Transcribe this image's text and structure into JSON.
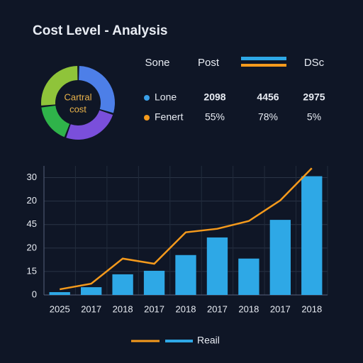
{
  "header": {
    "title": "Cost Level - Analysis"
  },
  "table": {
    "headers": [
      "Sone",
      "Post",
      "DSc"
    ],
    "rows": [
      {
        "label": "Lone",
        "color": "#3aa0e8",
        "cells": [
          "2098",
          "4456",
          "2975"
        ]
      },
      {
        "label": "Fenert",
        "color": "#f59a1c",
        "cells": [
          "55%",
          "78%",
          "5%"
        ]
      }
    ]
  },
  "chart_data": [
    {
      "type": "donut",
      "title": "Cartral",
      "subtitle": "cost",
      "values": [
        29,
        25,
        17,
        26
      ],
      "colors": [
        "#4d7fe8",
        "#7a4fdb",
        "#2fb34a",
        "#8fc43a"
      ]
    },
    {
      "type": "bar-line",
      "categories": [
        "2025",
        "2017",
        "2018",
        "2017",
        "2018",
        "2017",
        "2018",
        "2017",
        "2018"
      ],
      "series": [
        {
          "name": "Reail",
          "color": "#2ea8e6",
          "type": "bar",
          "values": [
            0.12,
            0.33,
            0.88,
            1.03,
            1.7,
            2.45,
            1.55,
            3.2,
            5.06
          ]
        },
        {
          "color": "#f59a1c",
          "type": "line",
          "values": [
            0.24,
            0.48,
            1.55,
            1.33,
            2.67,
            2.82,
            3.15,
            4.03,
            5.4
          ]
        }
      ],
      "ylim": [
        0,
        5.5
      ],
      "yticks": [
        {
          "value": 0,
          "label": "0"
        },
        {
          "value": 1,
          "label": "15"
        },
        {
          "value": 2,
          "label": "20"
        },
        {
          "value": 3,
          "label": "45"
        },
        {
          "value": 4,
          "label": "20"
        },
        {
          "value": 5,
          "label": "30"
        }
      ],
      "grid": true
    }
  ]
}
